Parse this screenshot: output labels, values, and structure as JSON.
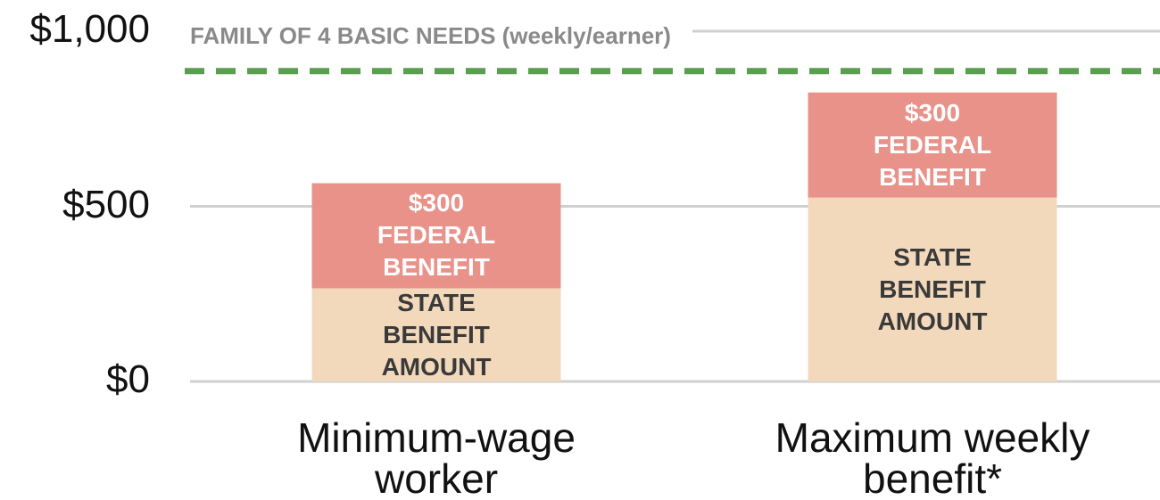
{
  "chart_data": {
    "type": "stacked_bar",
    "categories": [
      "Minimum-wage worker",
      "Maximum weekly benefit*"
    ],
    "series": [
      {
        "name": "STATE BENEFIT AMOUNT",
        "color": "#f3d9bb",
        "values": [
          266,
          525
        ]
      },
      {
        "name": "FEDERAL BENEFIT",
        "color": "#e8928a",
        "values": [
          300,
          300
        ],
        "value_labels": [
          "$300",
          "$300"
        ]
      }
    ],
    "ylim": [
      0,
      1000
    ],
    "yticks": [
      {
        "value": 0,
        "label": "$0"
      },
      {
        "value": 500,
        "label": "$500"
      },
      {
        "value": 1000,
        "label": "$1,000"
      }
    ],
    "grid": true,
    "reference_line": {
      "label": "FAMILY OF 4 BASIC NEEDS (weekly/earner)",
      "value": 886,
      "color": "#5a9e4f"
    }
  }
}
